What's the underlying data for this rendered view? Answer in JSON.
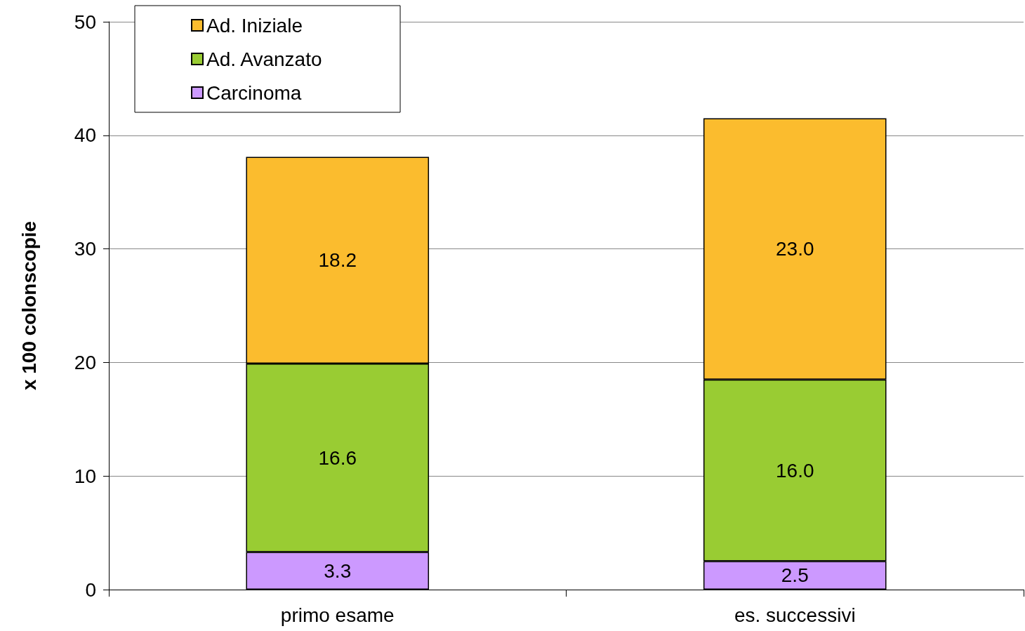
{
  "chart_data": {
    "type": "bar",
    "ylabel": "x 100 colonscopie",
    "categories": [
      "primo esame",
      "es. successivi"
    ],
    "stacked": true,
    "series": [
      {
        "name": "Carcinoma",
        "color": "#cc99ff",
        "values": [
          3.3,
          2.5
        ],
        "value_labels": [
          "3.3",
          "2.5"
        ]
      },
      {
        "name": "Ad. Avanzato",
        "color": "#99cc33",
        "values": [
          16.6,
          16.0
        ],
        "value_labels": [
          "16.6",
          "16.0"
        ]
      },
      {
        "name": "Ad. Iniziale",
        "color": "#fbbc2e",
        "values": [
          18.2,
          23.0
        ],
        "value_labels": [
          "18.2",
          "23.0"
        ]
      }
    ],
    "ylim": [
      0,
      50
    ],
    "yticks": [
      0,
      10,
      20,
      30,
      40,
      50
    ],
    "grid": "y",
    "legend": "top left"
  }
}
